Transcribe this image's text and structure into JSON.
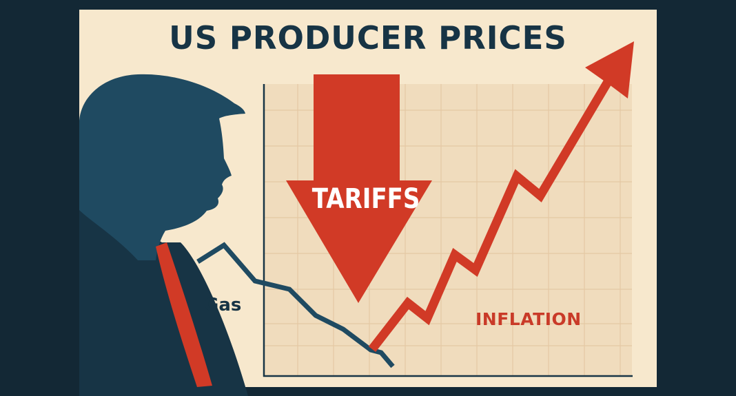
{
  "title": "US PRODUCER PRICES",
  "labels": {
    "tariffs": "TARIFFS",
    "gas": "Gas",
    "inflation": "INFLATION"
  },
  "colors": {
    "background": "#132835",
    "panel": "#f7e8cd",
    "grid_area": "#f0dcbd",
    "navy": "#173445",
    "red": "#d13a26"
  },
  "illustration": {
    "silhouette": "man-profile-silhouette",
    "arrows": [
      "down-arrow",
      "up-arrow"
    ],
    "lines": [
      "gas-line",
      "inflation-line"
    ]
  }
}
